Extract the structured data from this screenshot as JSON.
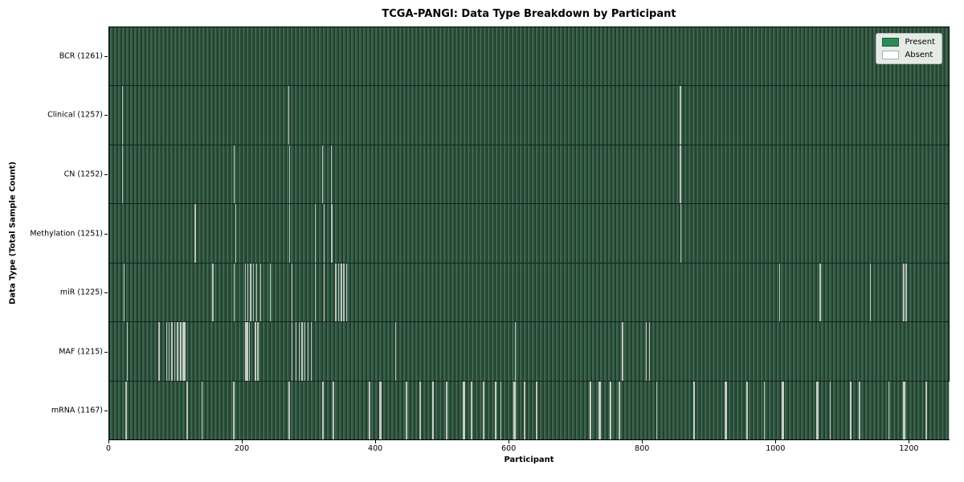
{
  "figure": {
    "title": "TCGA-PANGI: Data Type Breakdown by Participant",
    "xlabel": "Participant",
    "ylabel": "Data Type (Total Sample Count)"
  },
  "legend": {
    "items": [
      {
        "label": "Present",
        "color": "#2e8b57"
      },
      {
        "label": "Absent",
        "color": "#ffffff"
      }
    ]
  },
  "chart_data": {
    "type": "heatmap",
    "title": "TCGA-PANGI: Data Type Breakdown by Participant",
    "xlabel": "Participant",
    "ylabel": "Data Type (Total Sample Count)",
    "x_range": [
      0,
      1261
    ],
    "x_ticks": [
      0,
      200,
      400,
      600,
      800,
      1000,
      1200
    ],
    "total_participants": 1261,
    "cell_colors": {
      "present": "#2e8b57",
      "absent": "#ffffff"
    },
    "legend_position": "upper right",
    "grid": false,
    "rows": [
      {
        "label": "BCR (1261)",
        "data_type": "BCR",
        "present_count": 1261,
        "absent_count": 0,
        "absent_runs": []
      },
      {
        "label": "Clinical (1257)",
        "data_type": "Clinical",
        "present_count": 1257,
        "absent_count": 4,
        "absent_runs": [
          [
            19,
            1
          ],
          [
            268,
            1
          ],
          [
            855,
            2
          ]
        ]
      },
      {
        "label": "CN (1252)",
        "data_type": "CN",
        "present_count": 1252,
        "absent_count": 9,
        "absent_runs": [
          [
            19,
            2
          ],
          [
            187,
            1
          ],
          [
            270,
            1
          ],
          [
            319,
            1
          ],
          [
            332,
            2
          ],
          [
            855,
            2
          ]
        ]
      },
      {
        "label": "Methylation (1251)",
        "data_type": "Methylation",
        "present_count": 1251,
        "absent_count": 10,
        "absent_runs": [
          [
            128,
            2
          ],
          [
            189,
            1
          ],
          [
            270,
            1
          ],
          [
            308,
            1
          ],
          [
            321,
            1
          ],
          [
            333,
            2
          ],
          [
            856,
            2
          ]
        ]
      },
      {
        "label": "miR (1225)",
        "data_type": "miR",
        "present_count": 1225,
        "absent_count": 36,
        "absent_runs": [
          [
            22,
            1
          ],
          [
            154,
            2
          ],
          [
            187,
            1
          ],
          [
            203,
            2
          ],
          [
            207,
            1
          ],
          [
            211,
            2
          ],
          [
            216,
            1
          ],
          [
            220,
            2
          ],
          [
            226,
            2
          ],
          [
            241,
            1
          ],
          [
            273,
            1
          ],
          [
            308,
            1
          ],
          [
            321,
            1
          ],
          [
            339,
            2
          ],
          [
            343,
            1
          ],
          [
            347,
            2
          ],
          [
            351,
            1
          ],
          [
            355,
            2
          ],
          [
            1004,
            2
          ],
          [
            1065,
            2
          ],
          [
            1140,
            2
          ],
          [
            1190,
            2
          ],
          [
            1194,
            2
          ]
        ]
      },
      {
        "label": "MAF (1215)",
        "data_type": "MAF",
        "present_count": 1215,
        "absent_count": 46,
        "absent_runs": [
          [
            26,
            1
          ],
          [
            74,
            1
          ],
          [
            85,
            2
          ],
          [
            89,
            1
          ],
          [
            93,
            2
          ],
          [
            97,
            1
          ],
          [
            101,
            2
          ],
          [
            106,
            3
          ],
          [
            110,
            4
          ],
          [
            204,
            4
          ],
          [
            209,
            2
          ],
          [
            218,
            3
          ],
          [
            222,
            2
          ],
          [
            273,
            2
          ],
          [
            279,
            2
          ],
          [
            284,
            1
          ],
          [
            288,
            2
          ],
          [
            293,
            1
          ],
          [
            297,
            2
          ],
          [
            302,
            2
          ],
          [
            429,
            1
          ],
          [
            608,
            1
          ],
          [
            769,
            2
          ],
          [
            805,
            1
          ],
          [
            809,
            1
          ]
        ]
      },
      {
        "label": "mRNA (1167)",
        "data_type": "mRNA",
        "present_count": 1167,
        "absent_count": 94,
        "absent_runs": [
          [
            24,
            2
          ],
          [
            116,
            2
          ],
          [
            138,
            2
          ],
          [
            186,
            2
          ],
          [
            269,
            2
          ],
          [
            319,
            2
          ],
          [
            335,
            2
          ],
          [
            389,
            2
          ],
          [
            405,
            3
          ],
          [
            445,
            2
          ],
          [
            465,
            2
          ],
          [
            484,
            3
          ],
          [
            505,
            2
          ],
          [
            530,
            4
          ],
          [
            542,
            2
          ],
          [
            560,
            2
          ],
          [
            578,
            3
          ],
          [
            586,
            2
          ],
          [
            606,
            3
          ],
          [
            622,
            2
          ],
          [
            640,
            2
          ],
          [
            720,
            3
          ],
          [
            734,
            3
          ],
          [
            750,
            3
          ],
          [
            764,
            2
          ],
          [
            820,
            2
          ],
          [
            875,
            3
          ],
          [
            923,
            3
          ],
          [
            955,
            3
          ],
          [
            981,
            2
          ],
          [
            1008,
            4
          ],
          [
            1060,
            3
          ],
          [
            1080,
            2
          ],
          [
            1110,
            3
          ],
          [
            1124,
            2
          ],
          [
            1168,
            2
          ],
          [
            1190,
            3
          ],
          [
            1224,
            2
          ],
          [
            1258,
            1
          ]
        ]
      }
    ]
  }
}
